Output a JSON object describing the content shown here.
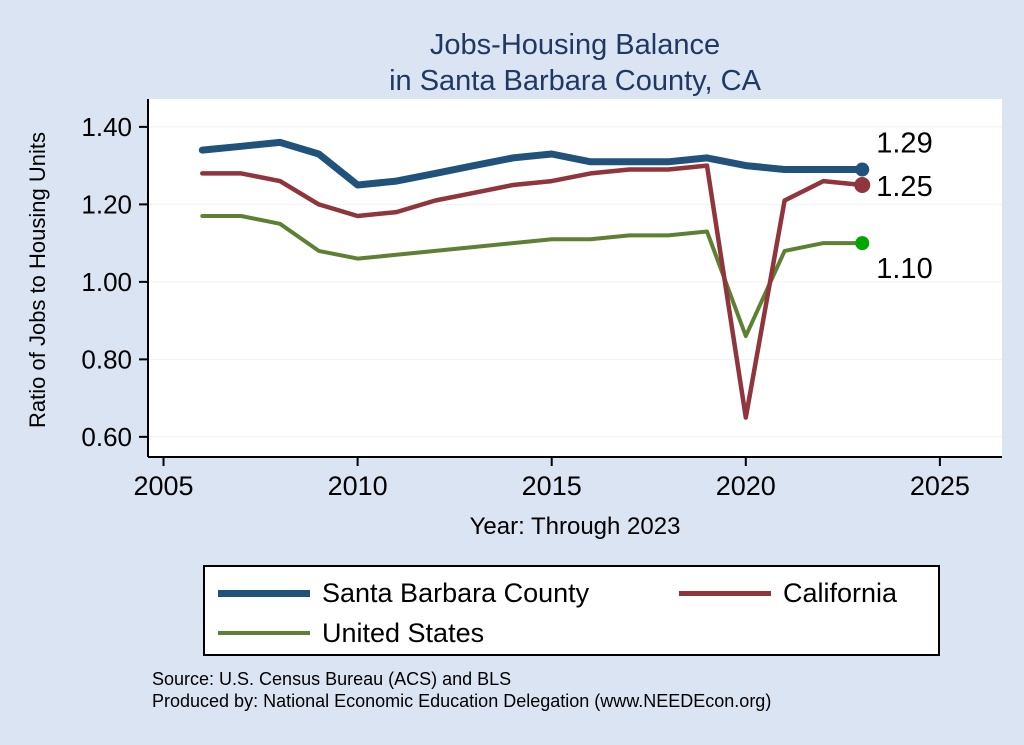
{
  "page": {
    "background": "#dbe4f2"
  },
  "chart": {
    "title_line1": "Jobs-Housing Balance",
    "title_line2": "in Santa Barbara County, CA",
    "title_color": "#1f3864",
    "ylabel": "Ratio of Jobs to Housing Units",
    "xlabel": "Year: Through 2023"
  },
  "chart_data": {
    "type": "line",
    "x": [
      2006,
      2007,
      2008,
      2009,
      2010,
      2011,
      2012,
      2013,
      2014,
      2015,
      2016,
      2017,
      2018,
      2019,
      2020,
      2021,
      2022,
      2023
    ],
    "series": [
      {
        "name": "Santa Barbara County",
        "color": "#21527b",
        "line_width": 7,
        "marker_radius": 7,
        "end_label": "1.29",
        "values": [
          1.34,
          1.35,
          1.36,
          1.33,
          1.25,
          1.26,
          1.28,
          1.3,
          1.32,
          1.33,
          1.31,
          1.31,
          1.31,
          1.32,
          1.3,
          1.29,
          1.29,
          1.29
        ]
      },
      {
        "name": "California",
        "color": "#90353b",
        "line_width": 4.5,
        "marker_radius": 8,
        "end_label": "1.25",
        "values": [
          1.28,
          1.28,
          1.26,
          1.2,
          1.17,
          1.18,
          1.21,
          1.23,
          1.25,
          1.26,
          1.28,
          1.29,
          1.29,
          1.3,
          0.65,
          1.21,
          1.26,
          1.25
        ]
      },
      {
        "name": "United States",
        "color": "#5e8033",
        "line_width": 4,
        "marker_radius": 7,
        "marker_color": "#00a600",
        "end_label": "1.10",
        "values": [
          1.17,
          1.17,
          1.15,
          1.08,
          1.06,
          1.07,
          1.08,
          1.09,
          1.1,
          1.11,
          1.11,
          1.12,
          1.12,
          1.13,
          0.86,
          1.08,
          1.1,
          1.1
        ]
      }
    ],
    "xlim": [
      2004.6,
      2026.6
    ],
    "ylim": [
      0.548,
      1.472
    ],
    "xticks": [
      2005,
      2010,
      2015,
      2020,
      2025
    ],
    "yticks": [
      "0.60",
      "0.80",
      "1.00",
      "1.20",
      "1.40"
    ],
    "grid": true,
    "legend_position": "bottom",
    "title": "Jobs-Housing Balance in Santa Barbara County, CA",
    "xlabel": "Year: Through 2023",
    "ylabel": "Ratio of Jobs to Housing Units"
  },
  "footer": {
    "source_line1": "Source: U.S. Census Bureau (ACS) and BLS",
    "source_line2": "Produced by: National Economic Education Delegation (www.NEEDEcon.org)"
  }
}
